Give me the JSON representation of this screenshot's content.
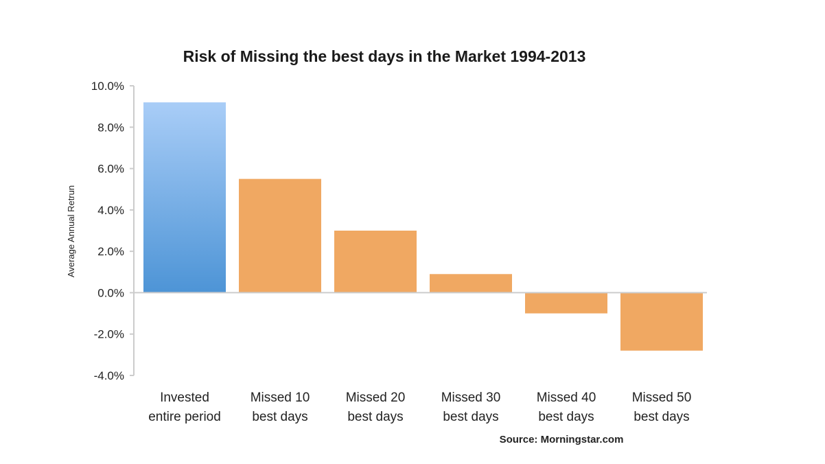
{
  "chart_data": {
    "type": "bar",
    "title": "Risk of Missing the best days in the Market 1994-2013",
    "ylabel": "Average Annual Retrun",
    "xlabel": "",
    "ylim": [
      -4,
      10
    ],
    "yticks": [
      "10.0%",
      "8.0%",
      "6.0%",
      "4.0%",
      "2.0%",
      "0.0%",
      "-2.0%",
      "-4.0%"
    ],
    "ytick_values": [
      10,
      8,
      6,
      4,
      2,
      0,
      -2,
      -4
    ],
    "grid": false,
    "legend": "none",
    "categories": [
      [
        "Invested",
        "entire period"
      ],
      [
        "Missed 10",
        "best days"
      ],
      [
        "Missed 20",
        "best days"
      ],
      [
        "Missed 30",
        "best days"
      ],
      [
        "Missed 40",
        "best days"
      ],
      [
        "Missed 50",
        "best days"
      ]
    ],
    "values": [
      9.2,
      5.5,
      3.0,
      0.9,
      -1.0,
      -2.8
    ],
    "colors": {
      "highlight_top": "#a9cdf7",
      "highlight_bottom": "#4d94d6",
      "bar": "#f0a862",
      "axis": "#cccccc"
    },
    "source": "Source:  Morningstar.com"
  }
}
